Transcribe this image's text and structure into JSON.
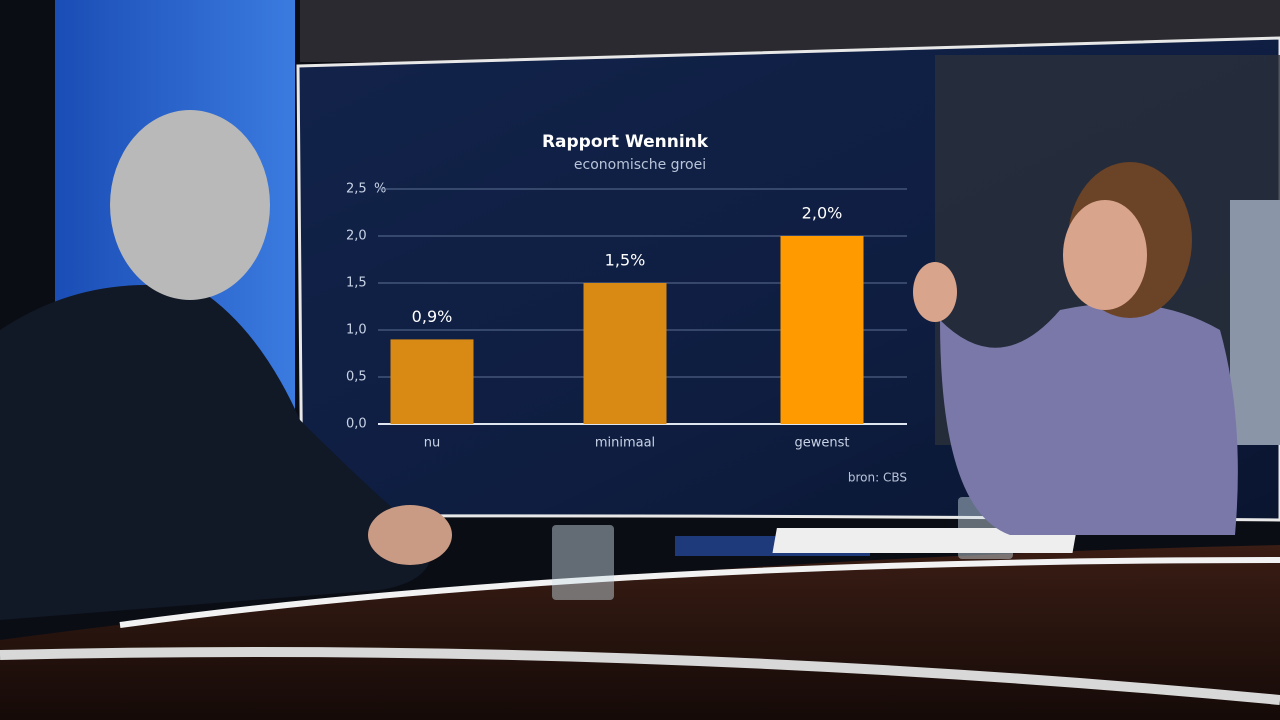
{
  "chart_data": {
    "type": "bar",
    "title": "Rapport Wennink",
    "subtitle": "economische groei",
    "categories": [
      "nu",
      "minimaal",
      "gewenst"
    ],
    "values": [
      0.9,
      1.5,
      2.0
    ],
    "value_labels": [
      "0,9%",
      "1,5%",
      "2,0%"
    ],
    "colors": [
      "#d98a14",
      "#d98a14",
      "#ff9a00"
    ],
    "ylim": [
      0,
      2.5
    ],
    "yticks": [
      {
        "value": 0,
        "label": "0,0"
      },
      {
        "value": 0.5,
        "label": "0,5"
      },
      {
        "value": 1,
        "label": "1,0"
      },
      {
        "value": 1.5,
        "label": "1,5"
      },
      {
        "value": 2,
        "label": "2,0"
      },
      {
        "value": 2.5,
        "label": "2,5"
      }
    ],
    "y_unit": "%",
    "grid": true,
    "source": "bron: CBS"
  }
}
